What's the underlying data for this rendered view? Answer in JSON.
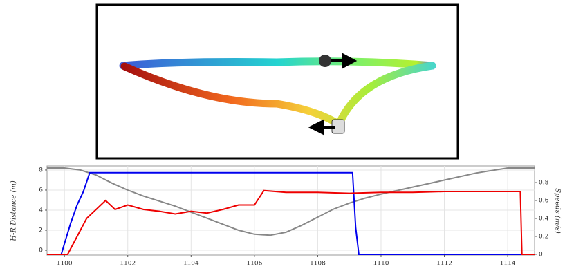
{
  "chart_data": {
    "type": "line",
    "y_label": "H-R Distance (m)",
    "y2_label": "Speeds (m/s)",
    "xlim": [
      1099.45,
      1114.85
    ],
    "xticks": [
      1100,
      1102,
      1104,
      1106,
      1108,
      1110,
      1112,
      1114
    ],
    "ylim": [
      -0.48,
      8.41
    ],
    "yticks": [
      0,
      2,
      4,
      6,
      8
    ],
    "y2lim": [
      -0.008,
      0.985
    ],
    "y2ticks": [
      0,
      0.2,
      0.4,
      0.6,
      0.8
    ],
    "grid": true,
    "series": [
      {
        "color": "#888888",
        "axis": "y",
        "x": [
          1099.45,
          1100,
          1100.5,
          1101,
          1101.5,
          1102,
          1102.5,
          1103,
          1103.5,
          1104,
          1104.5,
          1105,
          1105.5,
          1106,
          1106.5,
          1107,
          1107.5,
          1108,
          1108.5,
          1109,
          1109.5,
          1110,
          1111,
          1112,
          1113,
          1114,
          1114.85
        ],
        "values": [
          8.2,
          8.2,
          8.0,
          7.5,
          6.7,
          6.0,
          5.4,
          4.9,
          4.4,
          3.8,
          3.2,
          2.6,
          2.0,
          1.6,
          1.5,
          1.8,
          2.5,
          3.3,
          4.1,
          4.7,
          5.2,
          5.6,
          6.3,
          7.0,
          7.7,
          8.2,
          8.2
        ]
      },
      {
        "color": "#0000ee",
        "axis": "y2",
        "x": [
          1099.45,
          1099.9,
          1100,
          1100.2,
          1100.4,
          1100.6,
          1100.8,
          1109.1,
          1109.2,
          1109.3,
          1114.85
        ],
        "values": [
          0,
          0,
          0.12,
          0.35,
          0.55,
          0.7,
          0.91,
          0.91,
          0.3,
          0,
          0
        ]
      },
      {
        "color": "#ee0000",
        "axis": "y2",
        "x": [
          1099.45,
          1100.1,
          1100.4,
          1100.7,
          1101,
          1101.3,
          1101.6,
          1102,
          1102.5,
          1103,
          1103.5,
          1104,
          1104.5,
          1105,
          1105.5,
          1106,
          1106.3,
          1107,
          1108,
          1109,
          1110,
          1111,
          1112,
          1113,
          1114,
          1114.4,
          1114.45,
          1114.85
        ],
        "values": [
          0,
          0,
          0.2,
          0.4,
          0.5,
          0.6,
          0.5,
          0.55,
          0.5,
          0.48,
          0.45,
          0.48,
          0.46,
          0.5,
          0.55,
          0.55,
          0.71,
          0.69,
          0.69,
          0.68,
          0.69,
          0.69,
          0.7,
          0.7,
          0.7,
          0.7,
          0,
          0
        ]
      }
    ]
  }
}
